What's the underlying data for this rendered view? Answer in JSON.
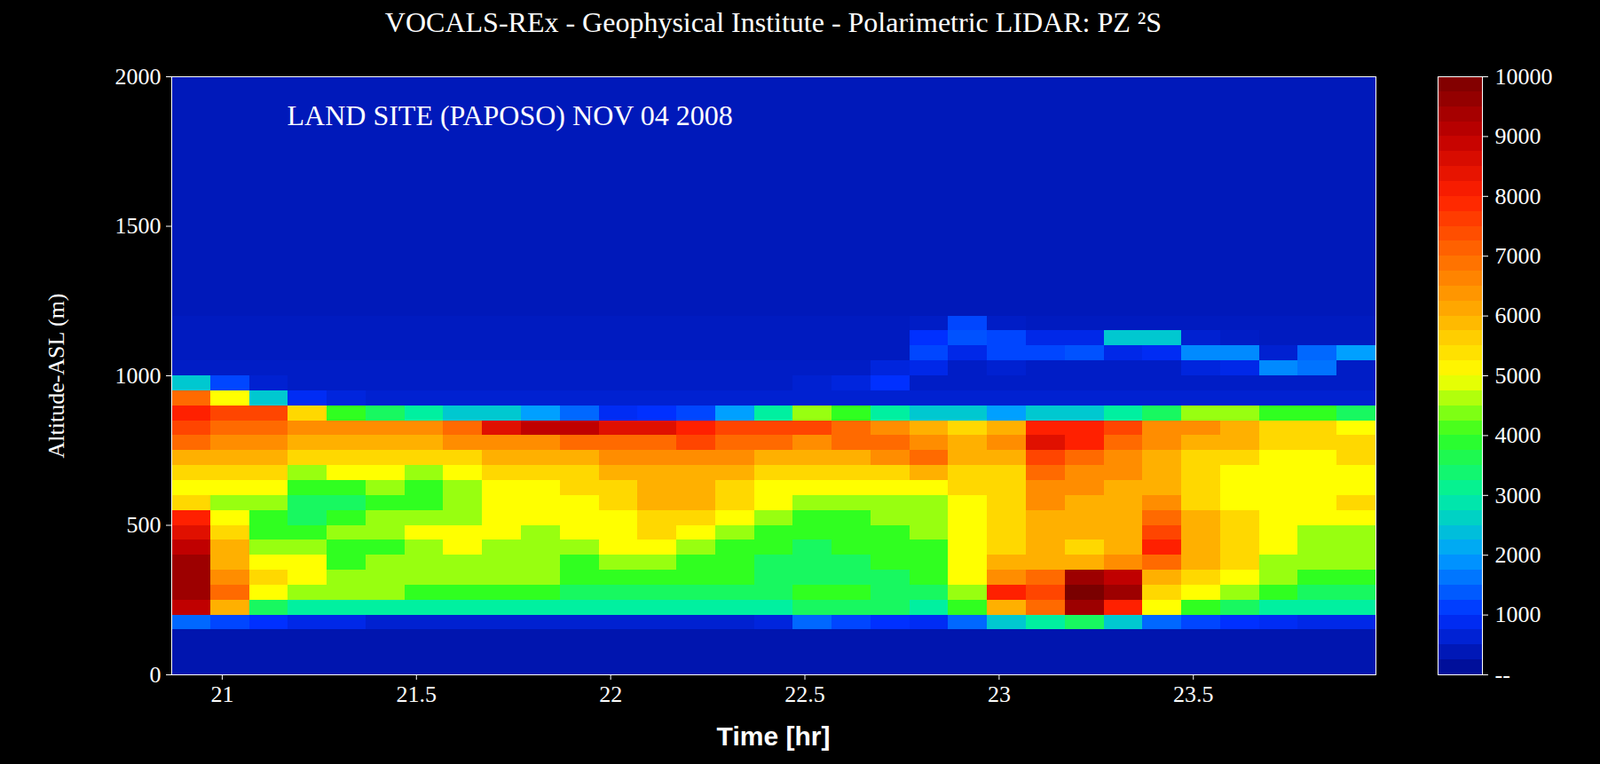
{
  "chart_data": {
    "type": "heatmap",
    "title": "VOCALS-REx - Geophysical Institute - Polarimetric LIDAR: PZ ²S",
    "annotation": "LAND SITE (PAPOSO) NOV 04 2008",
    "xlabel": "Time [hr]",
    "ylabel": "Altitude-ASL (m)",
    "xlim": [
      20.87,
      23.97
    ],
    "xticks": [
      21,
      21.5,
      22,
      22.5,
      23,
      23.5
    ],
    "ylim": [
      0,
      2000
    ],
    "yticks": [
      0,
      500,
      1000,
      1500,
      2000
    ],
    "x_edges": [
      20.87,
      20.97,
      21.07,
      21.17,
      21.27,
      21.37,
      21.47,
      21.57,
      21.67,
      21.77,
      21.87,
      21.97,
      22.07,
      22.17,
      22.27,
      22.37,
      22.47,
      22.57,
      22.67,
      22.77,
      22.87,
      22.97,
      23.07,
      23.17,
      23.27,
      23.37,
      23.47,
      23.57,
      23.67,
      23.77,
      23.87,
      23.97
    ],
    "y_edges": [
      0,
      150,
      200,
      250,
      300,
      350,
      400,
      450,
      500,
      550,
      600,
      650,
      700,
      750,
      800,
      850,
      900,
      950,
      1000,
      1050,
      1100,
      1150,
      1200,
      2000
    ],
    "cells": [
      [
        300,
        1500,
        9000,
        9500,
        9500,
        9500,
        9000,
        8500,
        8000,
        5500,
        5000,
        5500,
        6000,
        7000,
        7500,
        8000,
        7000,
        2500,
        500,
        450,
        450,
        450,
        400
      ],
      [
        300,
        1200,
        6000,
        7000,
        6500,
        6000,
        6000,
        5500,
        5000,
        4500,
        5000,
        5500,
        6000,
        6500,
        7000,
        7500,
        5000,
        1200,
        500,
        450,
        450,
        450,
        400
      ],
      [
        300,
        1000,
        3500,
        5000,
        5500,
        5000,
        4500,
        4000,
        4000,
        4500,
        5000,
        5500,
        6000,
        6500,
        7000,
        7500,
        2500,
        600,
        500,
        450,
        450,
        450,
        400
      ],
      [
        300,
        800,
        3000,
        4500,
        5000,
        5000,
        4500,
        4000,
        3500,
        3500,
        4000,
        4500,
        5500,
        6000,
        6500,
        5500,
        900,
        500,
        500,
        450,
        450,
        450,
        400
      ],
      [
        300,
        800,
        3000,
        4500,
        4500,
        4000,
        4000,
        4500,
        4000,
        3500,
        4000,
        5000,
        5500,
        6000,
        6500,
        4000,
        700,
        500,
        500,
        450,
        450,
        450,
        400
      ],
      [
        300,
        600,
        3000,
        4500,
        4500,
        4500,
        4000,
        4500,
        4500,
        4000,
        4500,
        5000,
        5500,
        6000,
        6500,
        3500,
        600,
        500,
        500,
        450,
        450,
        450,
        400
      ],
      [
        300,
        600,
        3000,
        4000,
        4500,
        4500,
        4500,
        5000,
        4500,
        4000,
        4000,
        4500,
        5500,
        6000,
        6500,
        3000,
        600,
        500,
        500,
        450,
        450,
        450,
        400
      ],
      [
        300,
        600,
        3000,
        4000,
        4500,
        4500,
        5000,
        5000,
        4500,
        4500,
        4500,
        5000,
        5500,
        6500,
        7000,
        2500,
        600,
        500,
        500,
        450,
        450,
        450,
        400
      ],
      [
        300,
        600,
        3000,
        4000,
        4500,
        4500,
        4500,
        5000,
        5000,
        5000,
        5000,
        5500,
        6000,
        6500,
        8500,
        2500,
        600,
        500,
        500,
        450,
        450,
        450,
        400
      ],
      [
        300,
        600,
        3000,
        4000,
        4500,
        4500,
        4500,
        4500,
        5000,
        5000,
        5000,
        5500,
        6000,
        6500,
        9000,
        2000,
        600,
        500,
        500,
        450,
        450,
        450,
        400
      ],
      [
        300,
        600,
        3000,
        3500,
        4000,
        4000,
        4500,
        5000,
        5000,
        5000,
        5500,
        5500,
        6000,
        7000,
        9000,
        1500,
        600,
        500,
        500,
        450,
        450,
        450,
        400
      ],
      [
        300,
        600,
        3000,
        3500,
        4000,
        4500,
        5000,
        5000,
        5000,
        5500,
        5500,
        6000,
        6500,
        7000,
        8500,
        900,
        600,
        500,
        500,
        450,
        450,
        450,
        400
      ],
      [
        300,
        600,
        3000,
        3500,
        4000,
        4500,
        5000,
        5500,
        5500,
        6000,
        6000,
        6000,
        6500,
        7000,
        8500,
        1000,
        600,
        500,
        500,
        450,
        450,
        450,
        400
      ],
      [
        300,
        600,
        3000,
        3500,
        4000,
        4000,
        4500,
        5000,
        5500,
        6000,
        6000,
        6000,
        6500,
        7500,
        8000,
        1200,
        600,
        500,
        500,
        450,
        450,
        450,
        400
      ],
      [
        300,
        600,
        3000,
        3500,
        4000,
        4000,
        4000,
        4500,
        5000,
        5500,
        5500,
        6000,
        6500,
        7000,
        7500,
        2000,
        600,
        500,
        500,
        450,
        450,
        450,
        400
      ],
      [
        300,
        700,
        3000,
        3500,
        3500,
        3500,
        4000,
        4000,
        4500,
        5000,
        5000,
        5500,
        6000,
        7000,
        7500,
        3000,
        600,
        500,
        500,
        450,
        450,
        450,
        400
      ],
      [
        300,
        1500,
        3500,
        4000,
        3500,
        3500,
        3500,
        4000,
        4000,
        4500,
        5000,
        5500,
        6000,
        6500,
        7500,
        4500,
        600,
        600,
        500,
        450,
        450,
        450,
        400
      ],
      [
        300,
        1200,
        3500,
        4000,
        3500,
        3500,
        4000,
        4000,
        4000,
        4500,
        5000,
        5500,
        6000,
        7000,
        7000,
        4000,
        600,
        700,
        500,
        450,
        450,
        450,
        400
      ],
      [
        300,
        1000,
        3500,
        3500,
        3500,
        4000,
        4000,
        4000,
        4500,
        4500,
        5000,
        5500,
        6500,
        7000,
        6500,
        3000,
        600,
        1000,
        700,
        450,
        450,
        450,
        400
      ],
      [
        300,
        900,
        3000,
        3500,
        4000,
        4000,
        4000,
        4500,
        4500,
        4500,
        5000,
        6000,
        7000,
        6500,
        6000,
        2500,
        600,
        500,
        800,
        1200,
        1000,
        500,
        400
      ],
      [
        300,
        1500,
        4000,
        4500,
        5000,
        5000,
        5000,
        5000,
        5000,
        5000,
        5500,
        5500,
        6000,
        6000,
        5500,
        2500,
        600,
        500,
        500,
        800,
        1300,
        1200,
        400
      ],
      [
        300,
        2500,
        6000,
        8000,
        6500,
        6000,
        5500,
        5500,
        5500,
        5500,
        5500,
        5500,
        6000,
        6500,
        6000,
        2000,
        600,
        500,
        600,
        1200,
        1200,
        500,
        400
      ],
      [
        300,
        3000,
        7000,
        7500,
        7000,
        6000,
        6000,
        6000,
        6000,
        6500,
        6500,
        7000,
        7500,
        8500,
        8000,
        2500,
        600,
        500,
        500,
        1200,
        800,
        450,
        400
      ],
      [
        300,
        3500,
        9500,
        10000,
        9500,
        6000,
        5500,
        6000,
        6000,
        6000,
        6500,
        6500,
        7000,
        8000,
        8000,
        2500,
        600,
        500,
        500,
        1300,
        800,
        450,
        400
      ],
      [
        300,
        2500,
        8000,
        9500,
        9000,
        6500,
        6000,
        6000,
        6000,
        6000,
        6000,
        6500,
        6500,
        7000,
        7500,
        3000,
        600,
        500,
        500,
        800,
        2500,
        450,
        400
      ],
      [
        300,
        1500,
        5000,
        5500,
        6000,
        7000,
        8000,
        7500,
        7000,
        6500,
        6000,
        6000,
        6000,
        6500,
        6500,
        3500,
        600,
        500,
        500,
        900,
        2500,
        450,
        400
      ],
      [
        300,
        1200,
        4000,
        5000,
        5500,
        6000,
        6000,
        6000,
        6000,
        5500,
        5500,
        5500,
        5500,
        6000,
        6500,
        4500,
        600,
        500,
        700,
        1800,
        600,
        450,
        400
      ],
      [
        300,
        1000,
        3500,
        4500,
        5000,
        5500,
        5500,
        5500,
        5500,
        5000,
        5000,
        5000,
        5500,
        6000,
        6000,
        4500,
        600,
        500,
        800,
        1800,
        500,
        450,
        400
      ],
      [
        300,
        900,
        3000,
        4000,
        4500,
        4500,
        5000,
        5000,
        5000,
        5000,
        5000,
        5000,
        5000,
        5500,
        5500,
        4000,
        600,
        500,
        1800,
        600,
        450,
        450,
        400
      ],
      [
        300,
        800,
        3000,
        3500,
        4000,
        4500,
        4500,
        4500,
        5000,
        5000,
        5000,
        5000,
        5000,
        5500,
        5500,
        4000,
        600,
        500,
        1600,
        1500,
        450,
        450,
        400
      ],
      [
        300,
        800,
        3000,
        3500,
        4000,
        4500,
        4500,
        4500,
        5000,
        5500,
        5000,
        5000,
        5500,
        5500,
        5000,
        3500,
        600,
        500,
        500,
        2000,
        450,
        450,
        400
      ]
    ],
    "colorbar": {
      "lim": [
        0,
        10000
      ],
      "ticks": [
        {
          "value": 0,
          "label": "--"
        },
        1000,
        2000,
        3000,
        4000,
        5000,
        6000,
        7000,
        8000,
        9000,
        10000
      ]
    }
  }
}
